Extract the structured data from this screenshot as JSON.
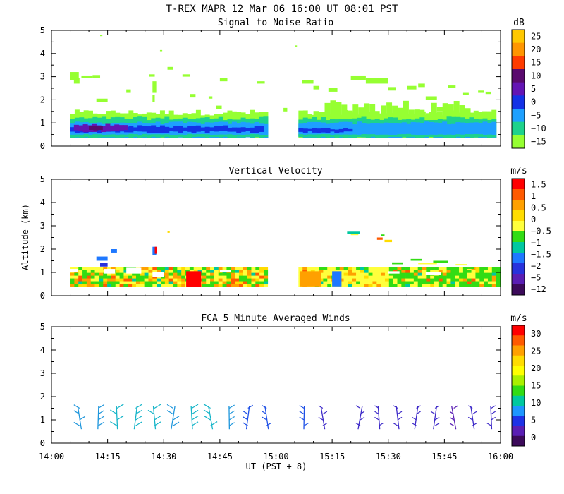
{
  "title": "T-REX   MAPR 12 Mar 06   16:00 UT   08:01   PST",
  "ylabel": "Altitude (km)",
  "xlabel": "UT  (PST + 8)",
  "x_ticks": [
    "14:00",
    "14:15",
    "14:30",
    "14:45",
    "15:00",
    "15:15",
    "15:30",
    "15:45",
    "16:00"
  ],
  "y_ticks": [
    "0",
    "1",
    "2",
    "3",
    "4",
    "5"
  ],
  "chart_data": [
    {
      "type": "heatmap",
      "title": "Signal to Noise Ratio",
      "units": "dB",
      "xlabel": "UT (PST + 8)",
      "ylabel": "Altitude (km)",
      "xlim": [
        "14:00",
        "16:00"
      ],
      "ylim": [
        0,
        5
      ],
      "colorbar_ticks": [
        "25",
        "20",
        "15",
        "10",
        "5",
        "0",
        "−5",
        "−10",
        "−15"
      ],
      "colorbar_colors": [
        "#ffc800",
        "#ff9600",
        "#ff3c00",
        "#5a0a6e",
        "#6414b4",
        "#1432e6",
        "#1ea0ff",
        "#1ed28c",
        "#96ff32"
      ],
      "data_gap": [
        "15:00",
        "15:07"
      ]
    },
    {
      "type": "heatmap",
      "title": "Vertical Velocity",
      "units": "m/s",
      "xlabel": "UT (PST + 8)",
      "ylabel": "Altitude (km)",
      "xlim": [
        "14:00",
        "16:00"
      ],
      "ylim": [
        0,
        5
      ],
      "colorbar_ticks": [
        "1.5",
        "1",
        "0.5",
        "0",
        "−0.5",
        "−1",
        "−1.5",
        "−2",
        "−5",
        "−12"
      ],
      "colorbar_colors": [
        "#ff0000",
        "#ff5a00",
        "#ffa000",
        "#ffdc00",
        "#ffff3c",
        "#32dc14",
        "#00c8a0",
        "#1e78ff",
        "#2832dc",
        "#5a1eb4",
        "#3c0a5a"
      ],
      "data_gap": [
        "15:00",
        "15:07"
      ]
    },
    {
      "type": "scatter",
      "title": "FCA 5 Minute Averaged Winds",
      "units": "m/s",
      "xlabel": "UT (PST + 8)",
      "ylabel": "Altitude (km)",
      "xlim": [
        "14:00",
        "16:00"
      ],
      "ylim": [
        0,
        5
      ],
      "colorbar_ticks": [
        "30",
        "25",
        "20",
        "15",
        "10",
        "5",
        "0"
      ],
      "colorbar_colors": [
        "#ff0000",
        "#ff5a00",
        "#ffa000",
        "#ffdc00",
        "#ffff00",
        "#aaf000",
        "#32dc14",
        "#00c8a0",
        "#1e96ff",
        "#1e32e6",
        "#5a1eb4",
        "#3c0a5a"
      ],
      "barb_times_min": [
        7.5,
        12.5,
        17.5,
        22.5,
        27.5,
        32.5,
        37.5,
        42.5,
        47.5,
        52.5,
        57.5,
        67.5,
        72.5,
        82.5,
        87.5,
        92.5,
        97.5,
        102.5,
        107.5,
        112.5,
        117.5
      ],
      "barb_altitudes_km": [
        0.75,
        1.0,
        1.25,
        1.5
      ],
      "barb_speed_ms": [
        8,
        9,
        11,
        10,
        10,
        9,
        10,
        11,
        7,
        6,
        5,
        5,
        4,
        4,
        4,
        4,
        4,
        4,
        3,
        4,
        4
      ]
    }
  ]
}
